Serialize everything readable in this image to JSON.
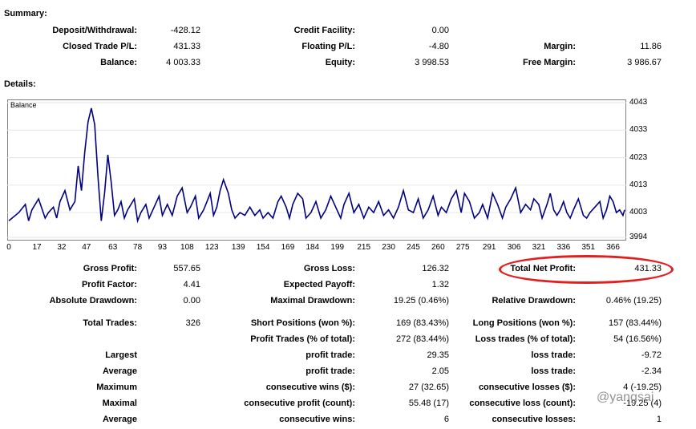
{
  "summary": {
    "title": "Summary:",
    "deposit_label": "Deposit/Withdrawal:",
    "deposit_value": "-428.12",
    "closed_label": "Closed Trade P/L:",
    "closed_value": "431.33",
    "balance_label": "Balance:",
    "balance_value": "4 003.33",
    "credit_label": "Credit Facility:",
    "credit_value": "0.00",
    "floating_label": "Floating P/L:",
    "floating_value": "-4.80",
    "equity_label": "Equity:",
    "equity_value": "3 998.53",
    "margin_label": "Margin:",
    "margin_value": "11.86",
    "free_margin_label": "Free Margin:",
    "free_margin_value": "3 986.67"
  },
  "details": {
    "title": "Details:"
  },
  "chart_data": {
    "type": "line",
    "title": "Balance",
    "x_ticks": [
      "0",
      "17",
      "32",
      "47",
      "63",
      "78",
      "93",
      "108",
      "123",
      "139",
      "154",
      "169",
      "184",
      "199",
      "215",
      "230",
      "245",
      "260",
      "275",
      "291",
      "306",
      "321",
      "336",
      "351",
      "366"
    ],
    "y_ticks": [
      "4043",
      "4033",
      "4023",
      "4013",
      "4003",
      "3994"
    ],
    "ylim": [
      3994,
      4043
    ],
    "xlim": [
      0,
      373
    ],
    "series": [
      {
        "color": "#000080",
        "points": [
          [
            0,
            4000
          ],
          [
            6,
            4003
          ],
          [
            10,
            4006
          ],
          [
            12,
            4000
          ],
          [
            14,
            4004
          ],
          [
            18,
            4008
          ],
          [
            22,
            4001
          ],
          [
            24,
            4003
          ],
          [
            27,
            4005
          ],
          [
            29,
            4001
          ],
          [
            31,
            4007
          ],
          [
            34,
            4011
          ],
          [
            37,
            4004
          ],
          [
            40,
            4007
          ],
          [
            42,
            4020
          ],
          [
            44,
            4011
          ],
          [
            46,
            4025
          ],
          [
            48,
            4036
          ],
          [
            50,
            4041
          ],
          [
            52,
            4035
          ],
          [
            54,
            4016
          ],
          [
            56,
            4000
          ],
          [
            58,
            4010
          ],
          [
            60,
            4024
          ],
          [
            62,
            4014
          ],
          [
            64,
            4002
          ],
          [
            66,
            4004
          ],
          [
            68,
            4007
          ],
          [
            70,
            4001
          ],
          [
            72,
            4004
          ],
          [
            76,
            4008
          ],
          [
            78,
            4000
          ],
          [
            80,
            4003
          ],
          [
            83,
            4006
          ],
          [
            85,
            4001
          ],
          [
            88,
            4005
          ],
          [
            91,
            4009
          ],
          [
            93,
            4002
          ],
          [
            96,
            4006
          ],
          [
            99,
            4002
          ],
          [
            102,
            4009
          ],
          [
            105,
            4012
          ],
          [
            108,
            4003
          ],
          [
            110,
            4005
          ],
          [
            113,
            4009
          ],
          [
            115,
            4001
          ],
          [
            118,
            4004
          ],
          [
            120,
            4007
          ],
          [
            122,
            4010
          ],
          [
            124,
            4002
          ],
          [
            126,
            4005
          ],
          [
            128,
            4011
          ],
          [
            130,
            4015
          ],
          [
            133,
            4010
          ],
          [
            135,
            4004
          ],
          [
            137,
            4001
          ],
          [
            140,
            4003
          ],
          [
            143,
            4002
          ],
          [
            146,
            4005
          ],
          [
            149,
            4002
          ],
          [
            152,
            4004
          ],
          [
            154,
            4001
          ],
          [
            157,
            4003
          ],
          [
            160,
            4001
          ],
          [
            163,
            4007
          ],
          [
            165,
            4009
          ],
          [
            168,
            4005
          ],
          [
            170,
            4001
          ],
          [
            172,
            4006
          ],
          [
            175,
            4010
          ],
          [
            178,
            4008
          ],
          [
            180,
            4001
          ],
          [
            183,
            4003
          ],
          [
            186,
            4007
          ],
          [
            189,
            4001
          ],
          [
            192,
            4004
          ],
          [
            195,
            4009
          ],
          [
            198,
            4005
          ],
          [
            201,
            4001
          ],
          [
            203,
            4006
          ],
          [
            206,
            4010
          ],
          [
            209,
            4003
          ],
          [
            212,
            4006
          ],
          [
            215,
            4001
          ],
          [
            218,
            4005
          ],
          [
            221,
            4003
          ],
          [
            224,
            4007
          ],
          [
            227,
            4002
          ],
          [
            230,
            4004
          ],
          [
            233,
            4001
          ],
          [
            236,
            4005
          ],
          [
            239,
            4011
          ],
          [
            242,
            4004
          ],
          [
            245,
            4003
          ],
          [
            248,
            4008
          ],
          [
            251,
            4001
          ],
          [
            254,
            4004
          ],
          [
            257,
            4009
          ],
          [
            260,
            4002
          ],
          [
            262,
            4005
          ],
          [
            265,
            4003
          ],
          [
            268,
            4008
          ],
          [
            271,
            4011
          ],
          [
            274,
            4003
          ],
          [
            276,
            4010
          ],
          [
            279,
            4007
          ],
          [
            282,
            4001
          ],
          [
            285,
            4003
          ],
          [
            287,
            4006
          ],
          [
            290,
            4001
          ],
          [
            293,
            4010
          ],
          [
            296,
            4006
          ],
          [
            299,
            4001
          ],
          [
            301,
            4005
          ],
          [
            304,
            4008
          ],
          [
            307,
            4012
          ],
          [
            310,
            4003
          ],
          [
            313,
            4006
          ],
          [
            316,
            4004
          ],
          [
            318,
            4008
          ],
          [
            321,
            4006
          ],
          [
            323,
            4001
          ],
          [
            326,
            4006
          ],
          [
            328,
            4010
          ],
          [
            330,
            4004
          ],
          [
            332,
            4002
          ],
          [
            334,
            4004
          ],
          [
            336,
            4007
          ],
          [
            338,
            4003
          ],
          [
            340,
            4001
          ],
          [
            342,
            4004
          ],
          [
            345,
            4008
          ],
          [
            348,
            4002
          ],
          [
            350,
            4001
          ],
          [
            352,
            4003
          ],
          [
            355,
            4005
          ],
          [
            358,
            4007
          ],
          [
            360,
            4001
          ],
          [
            362,
            4004
          ],
          [
            364,
            4009
          ],
          [
            366,
            4007
          ],
          [
            368,
            4003
          ],
          [
            370,
            4004
          ],
          [
            372,
            4002
          ],
          [
            373,
            4004
          ]
        ]
      }
    ]
  },
  "stats": {
    "gross_profit_label": "Gross Profit:",
    "gross_profit_value": "557.65",
    "profit_factor_label": "Profit Factor:",
    "profit_factor_value": "4.41",
    "abs_dd_label": "Absolute Drawdown:",
    "abs_dd_value": "0.00",
    "total_trades_label": "Total Trades:",
    "total_trades_value": "326",
    "largest_label": "Largest",
    "average_label": "Average",
    "maximum_label": "Maximum",
    "maximal_label": "Maximal",
    "average2_label": "Average",
    "gross_loss_label": "Gross Loss:",
    "gross_loss_value": "126.32",
    "exp_payoff_label": "Expected Payoff:",
    "exp_payoff_value": "1.32",
    "max_dd_label": "Maximal Drawdown:",
    "max_dd_value": "19.25 (0.46%)",
    "short_label": "Short Positions (won %):",
    "short_value": "169 (83.43%)",
    "profit_trades_label": "Profit Trades (% of total):",
    "profit_trades_value": "272 (83.44%)",
    "largest_profit_label": "profit trade:",
    "largest_profit_value": "29.35",
    "average_profit_label": "profit trade:",
    "average_profit_value": "2.05",
    "max_cons_wins_label": "consecutive wins ($):",
    "max_cons_wins_value": "27 (32.65)",
    "maximal_cons_profit_label": "consecutive profit (count):",
    "maximal_cons_profit_value": "55.48 (17)",
    "avg_cons_wins_label": "consecutive wins:",
    "avg_cons_wins_value": "6",
    "total_net_label": "Total Net Profit:",
    "total_net_value": "431.33",
    "rel_dd_label": "Relative Drawdown:",
    "rel_dd_value": "0.46% (19.25)",
    "long_label": "Long Positions (won %):",
    "long_value": "157 (83.44%)",
    "loss_trades_label": "Loss trades (% of total):",
    "loss_trades_value": "54 (16.56%)",
    "largest_loss_label": "loss trade:",
    "largest_loss_value": "-9.72",
    "average_loss_label": "loss trade:",
    "average_loss_value": "-2.34",
    "max_cons_losses_label": "consecutive losses ($):",
    "max_cons_losses_value": "4 (-19.25)",
    "maximal_cons_loss_label": "consecutive loss (count):",
    "maximal_cons_loss_value": "-19.25 (4)",
    "avg_cons_losses_label": "consecutive losses:",
    "avg_cons_losses_value": "1"
  },
  "watermark": {
    "text": "@yangsai"
  }
}
